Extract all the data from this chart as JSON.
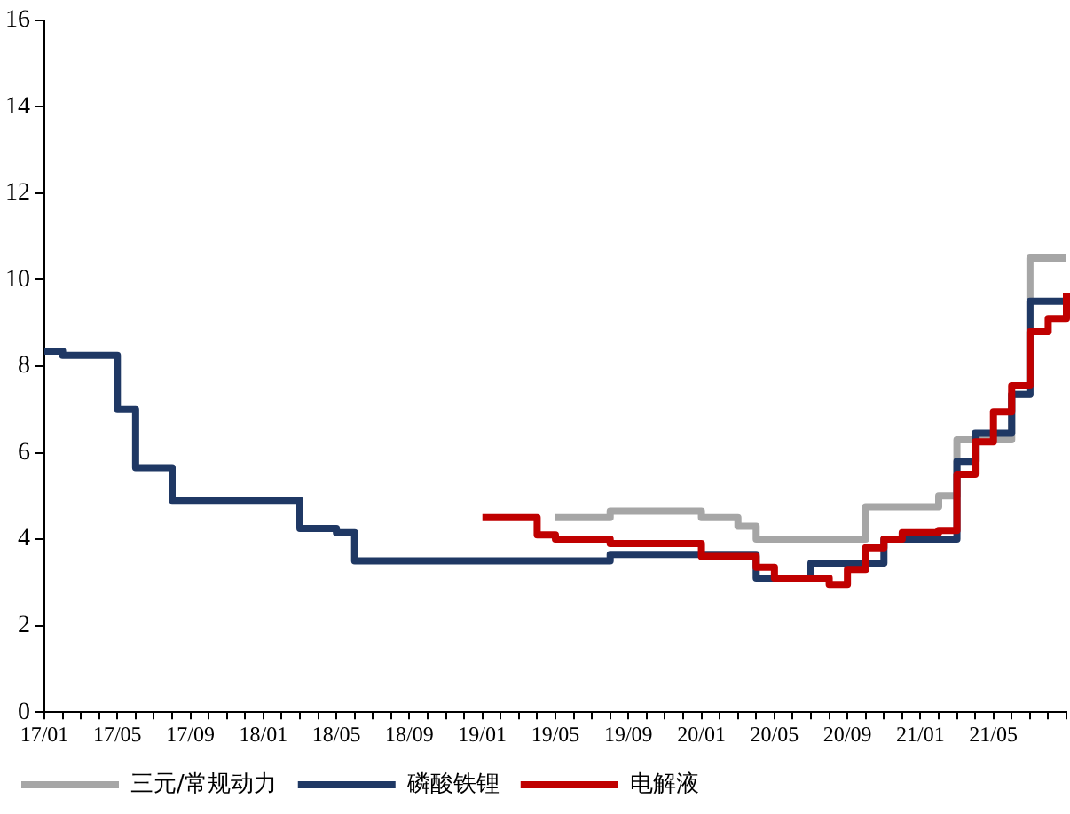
{
  "chart_data": {
    "type": "step",
    "categories": [
      "17/01",
      null,
      null,
      null,
      "17/05",
      null,
      null,
      null,
      "17/09",
      null,
      null,
      null,
      "18/01",
      null,
      null,
      null,
      "18/05",
      null,
      null,
      null,
      "18/09",
      null,
      null,
      null,
      "19/01",
      null,
      null,
      null,
      "19/05",
      null,
      null,
      null,
      "19/09",
      null,
      null,
      null,
      "20/01",
      null,
      null,
      null,
      "20/05",
      null,
      null,
      null,
      "20/09",
      null,
      null,
      null,
      "21/01",
      null,
      null,
      null,
      "21/05",
      null,
      null,
      null,
      null
    ],
    "series": [
      {
        "name": "三元/常规动力",
        "color": "#a6a6a6",
        "values": [
          null,
          null,
          null,
          null,
          null,
          null,
          null,
          null,
          null,
          null,
          null,
          null,
          null,
          null,
          null,
          null,
          null,
          null,
          null,
          null,
          null,
          null,
          null,
          null,
          null,
          null,
          null,
          null,
          4.5,
          4.5,
          4.5,
          4.65,
          4.65,
          4.65,
          4.65,
          4.65,
          4.5,
          4.5,
          4.3,
          4.0,
          4.0,
          4.0,
          4.0,
          4.0,
          4.0,
          4.75,
          4.75,
          4.75,
          4.75,
          5.0,
          6.3,
          6.3,
          6.3,
          7.35,
          10.5,
          10.5,
          10.5
        ]
      },
      {
        "name": "磷酸铁锂",
        "color": "#1f3864",
        "values": [
          8.35,
          8.25,
          8.25,
          8.25,
          7.0,
          5.65,
          5.65,
          4.9,
          4.9,
          4.9,
          4.9,
          4.9,
          4.9,
          4.9,
          4.25,
          4.25,
          4.15,
          3.5,
          3.5,
          3.5,
          3.5,
          3.5,
          3.5,
          3.5,
          3.5,
          3.5,
          3.5,
          3.5,
          3.5,
          3.5,
          3.5,
          3.65,
          3.65,
          3.65,
          3.65,
          3.65,
          3.65,
          3.65,
          3.65,
          3.1,
          3.1,
          3.1,
          3.45,
          3.45,
          3.45,
          3.45,
          4.0,
          4.0,
          4.0,
          4.0,
          5.8,
          6.45,
          6.45,
          7.35,
          9.5,
          9.5,
          9.5
        ]
      },
      {
        "name": "电解液",
        "color": "#c00000",
        "values": [
          null,
          null,
          null,
          null,
          null,
          null,
          null,
          null,
          null,
          null,
          null,
          null,
          null,
          null,
          null,
          null,
          null,
          null,
          null,
          null,
          null,
          null,
          null,
          null,
          4.5,
          4.5,
          4.5,
          4.1,
          4.0,
          4.0,
          4.0,
          3.9,
          3.9,
          3.9,
          3.9,
          3.9,
          3.6,
          3.6,
          3.6,
          3.35,
          3.1,
          3.1,
          3.1,
          2.95,
          3.3,
          3.8,
          4.0,
          4.15,
          4.15,
          4.2,
          5.5,
          6.25,
          6.95,
          7.55,
          8.8,
          9.1,
          9.7
        ]
      }
    ],
    "ylim": [
      0,
      16
    ],
    "yticks": [
      0,
      2,
      4,
      6,
      8,
      10,
      12,
      14,
      16
    ],
    "grid": false,
    "legend": "bottom",
    "marker": "none",
    "line_style": "solid"
  }
}
